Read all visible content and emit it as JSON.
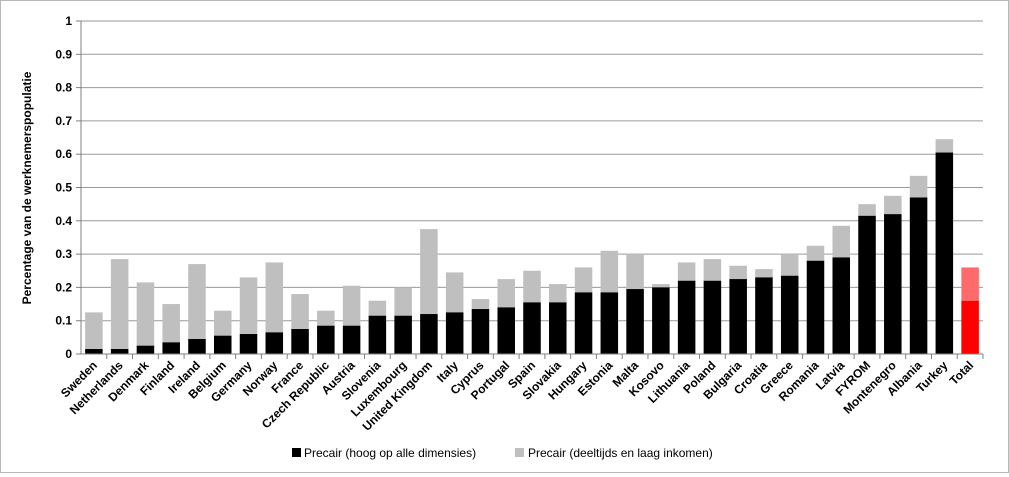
{
  "chart_data": {
    "type": "bar",
    "stacked": true,
    "title": "",
    "xlabel": "",
    "ylabel": "Percentage van de werknemerspopulatie",
    "ylim": [
      0,
      1
    ],
    "yticks": [
      "0",
      "0.1",
      "0.2",
      "0.3",
      "0.4",
      "0.5",
      "0.6",
      "0.7",
      "0.8",
      "0.9",
      "1"
    ],
    "grid": true,
    "legend_position": "bottom",
    "categories": [
      "Sweden",
      "Netherlands",
      "Denmark",
      "Finland",
      "Ireland",
      "Belgium",
      "Germany",
      "Norway",
      "France",
      "Czech Republic",
      "Austria",
      "Slovenia",
      "Luxembourg",
      "United Kingdom",
      "Italy",
      "Cyprus",
      "Portugal",
      "Spain",
      "Slovakia",
      "Hungary",
      "Estonia",
      "Malta",
      "Kosovo",
      "Lithuania",
      "Poland",
      "Bulgaria",
      "Croatia",
      "Greece",
      "Romania",
      "Latvia",
      "FYROM",
      "Montenegro",
      "Albania",
      "Turkey",
      "Total"
    ],
    "series": [
      {
        "name": "Precair (hoog op alle dimensies)",
        "color": "#000000",
        "highlight_color": "#ff0000",
        "values": [
          0.015,
          0.015,
          0.025,
          0.035,
          0.045,
          0.055,
          0.06,
          0.065,
          0.075,
          0.085,
          0.085,
          0.115,
          0.115,
          0.12,
          0.125,
          0.135,
          0.14,
          0.155,
          0.155,
          0.185,
          0.185,
          0.195,
          0.2,
          0.22,
          0.22,
          0.225,
          0.23,
          0.235,
          0.28,
          0.29,
          0.415,
          0.42,
          0.47,
          0.605,
          0.16
        ]
      },
      {
        "name": "Precair (deeltijds en laag inkomen)",
        "color": "#bfbfbf",
        "highlight_color": "#ff6b6b",
        "values": [
          0.11,
          0.27,
          0.19,
          0.115,
          0.225,
          0.075,
          0.17,
          0.21,
          0.105,
          0.045,
          0.12,
          0.045,
          0.085,
          0.255,
          0.12,
          0.03,
          0.085,
          0.095,
          0.055,
          0.075,
          0.125,
          0.105,
          0.01,
          0.055,
          0.065,
          0.04,
          0.025,
          0.065,
          0.045,
          0.095,
          0.035,
          0.055,
          0.065,
          0.04,
          0.1
        ]
      }
    ],
    "highlight_categories": [
      "Total"
    ]
  }
}
